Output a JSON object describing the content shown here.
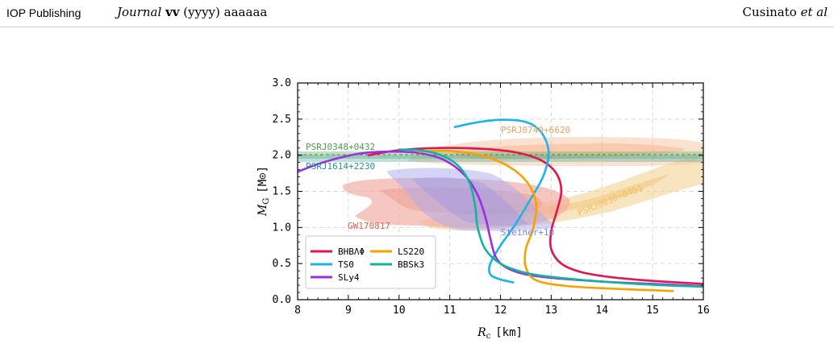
{
  "header": {
    "publisher": "IOP Publishing",
    "journal_name": "Journal",
    "journal_volume": "vv",
    "journal_year": "(yyyy)",
    "journal_article": "aaaaaa",
    "authors_name": "Cusinato",
    "authors_etal": "et al"
  },
  "chart_data": {
    "type": "line",
    "xlabel_symbol": "R",
    "xlabel_sub": "c",
    "xlabel_unit": "[km]",
    "ylabel_symbol": "M",
    "ylabel_sub": "G",
    "ylabel_unit": "[M⊙]",
    "xlim": [
      8,
      16
    ],
    "ylim": [
      0,
      3
    ],
    "xticks": [
      8,
      9,
      10,
      11,
      12,
      13,
      14,
      15,
      16
    ],
    "yticks": [
      "0.0",
      "0.5",
      "1.0",
      "1.5",
      "2.0",
      "2.5",
      "3.0"
    ],
    "grid": true,
    "legend_position": "lower-left",
    "series": [
      {
        "name": "BHBΛΦ",
        "color": "#e0174f",
        "points": [
          [
            9.4,
            2.0
          ],
          [
            10.0,
            2.07
          ],
          [
            10.8,
            2.1
          ],
          [
            11.6,
            2.09
          ],
          [
            12.3,
            2.04
          ],
          [
            12.8,
            1.93
          ],
          [
            13.1,
            1.75
          ],
          [
            13.2,
            1.5
          ],
          [
            13.1,
            1.2
          ],
          [
            13.0,
            0.95
          ],
          [
            13.0,
            0.7
          ],
          [
            13.2,
            0.5
          ],
          [
            13.6,
            0.38
          ],
          [
            14.2,
            0.31
          ],
          [
            15.0,
            0.26
          ],
          [
            16.0,
            0.22
          ]
        ]
      },
      {
        "name": "TS0",
        "color": "#1ab4ea",
        "points": [
          [
            11.1,
            2.39
          ],
          [
            11.5,
            2.45
          ],
          [
            12.0,
            2.49
          ],
          [
            12.5,
            2.46
          ],
          [
            12.8,
            2.32
          ],
          [
            12.95,
            2.05
          ],
          [
            12.85,
            1.72
          ],
          [
            12.6,
            1.4
          ],
          [
            12.3,
            1.05
          ],
          [
            12.0,
            0.75
          ],
          [
            11.8,
            0.5
          ],
          [
            11.8,
            0.35
          ],
          [
            12.0,
            0.28
          ],
          [
            12.25,
            0.24
          ]
        ]
      },
      {
        "name": "SLy4",
        "color": "#9b2ee3",
        "points": [
          [
            8.0,
            1.77
          ],
          [
            8.5,
            1.9
          ],
          [
            9.2,
            2.02
          ],
          [
            9.8,
            2.05
          ],
          [
            10.4,
            2.03
          ],
          [
            10.9,
            1.93
          ],
          [
            11.3,
            1.72
          ],
          [
            11.55,
            1.45
          ],
          [
            11.7,
            1.15
          ],
          [
            11.8,
            0.85
          ],
          [
            11.9,
            0.6
          ],
          [
            12.1,
            0.45
          ],
          [
            12.5,
            0.35
          ],
          [
            13.2,
            0.29
          ],
          [
            14.3,
            0.24
          ],
          [
            16.0,
            0.19
          ]
        ]
      },
      {
        "name": "LS220",
        "color": "#f5a300",
        "points": [
          [
            10.4,
            2.05
          ],
          [
            11.0,
            2.06
          ],
          [
            11.6,
            2.0
          ],
          [
            12.1,
            1.87
          ],
          [
            12.5,
            1.65
          ],
          [
            12.7,
            1.35
          ],
          [
            12.65,
            1.0
          ],
          [
            12.5,
            0.7
          ],
          [
            12.5,
            0.45
          ],
          [
            12.7,
            0.27
          ],
          [
            13.3,
            0.19
          ],
          [
            14.3,
            0.15
          ],
          [
            15.4,
            0.12
          ]
        ]
      },
      {
        "name": "BBSk3",
        "color": "#16b39b",
        "points": [
          [
            10.0,
            2.08
          ],
          [
            10.5,
            2.06
          ],
          [
            10.9,
            1.98
          ],
          [
            11.2,
            1.83
          ],
          [
            11.4,
            1.6
          ],
          [
            11.5,
            1.3
          ],
          [
            11.55,
            1.0
          ],
          [
            11.7,
            0.7
          ],
          [
            12.0,
            0.5
          ],
          [
            12.5,
            0.37
          ],
          [
            13.2,
            0.3
          ],
          [
            14.2,
            0.24
          ],
          [
            15.2,
            0.2
          ],
          [
            16.0,
            0.18
          ]
        ]
      }
    ],
    "constraints": [
      {
        "label": "PSRJ0348+0432",
        "color": "#4f9a52",
        "mass": 2.01,
        "band": [
          1.97,
          2.05
        ]
      },
      {
        "label": "PSRJ1614+2230",
        "color": "#2a9590",
        "mass": 1.93,
        "band": [
          1.89,
          1.97
        ]
      },
      {
        "label": "PSRJ0740+6620",
        "color": "#f3a36c",
        "mass": 2.08,
        "band": [
          1.9,
          2.25
        ]
      },
      {
        "label": "PSRJ0030+0451",
        "color": "#f2c05f",
        "mass": 1.44,
        "band": [
          1.0,
          2.0
        ]
      },
      {
        "label": "GW170817",
        "color": "#e76d62",
        "mass": 1.4,
        "band": [
          1.1,
          1.7
        ]
      },
      {
        "label": "Steiner+10",
        "color": "#7e7ee8",
        "mass": 1.4,
        "band": [
          0.95,
          1.8
        ]
      }
    ]
  }
}
